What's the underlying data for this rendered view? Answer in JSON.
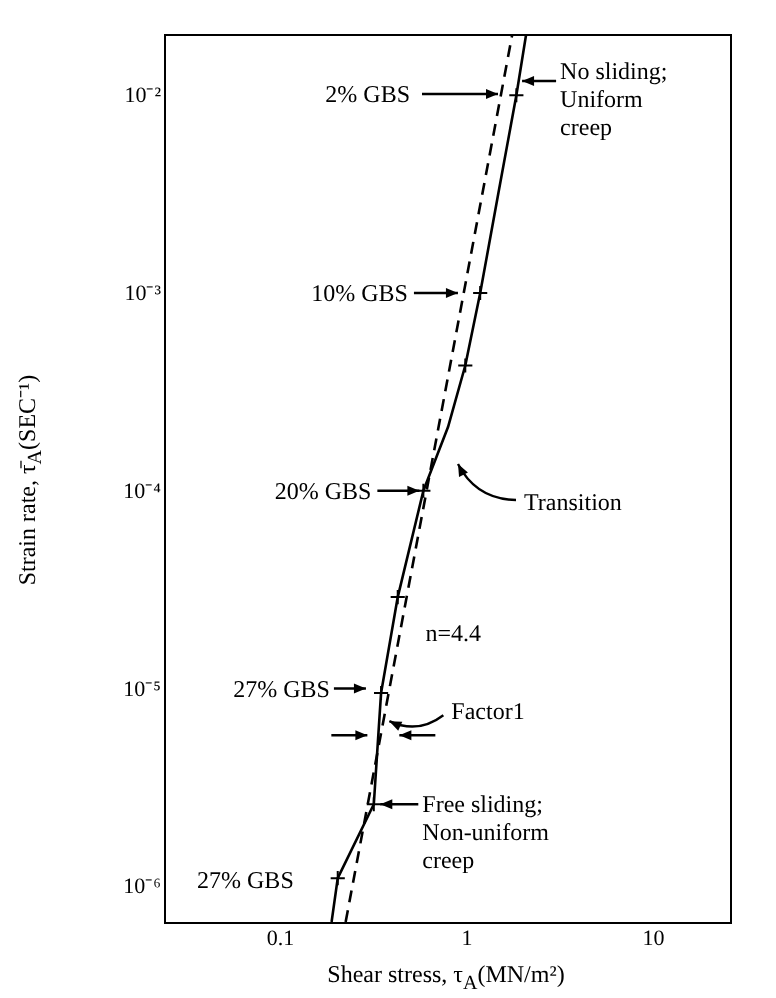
{
  "chart_data": {
    "type": "line",
    "log": "xy",
    "xlabel": "Shear stress, τ$_{A}$(MN/m²)",
    "ylabel": "Strain rate,  τ̄$_{A}$(SEC⁻¹)",
    "xlim": [
      0.024,
      26
    ],
    "ylim": [
      6.6e-07,
      0.0204
    ],
    "xticks": [
      0.1,
      1,
      10
    ],
    "yticks": [
      {
        "value": 1e-06,
        "label": "10⁻⁶"
      },
      {
        "value": 1e-05,
        "label": "10⁻⁵"
      },
      {
        "value": 0.0001,
        "label": "10⁻⁴"
      },
      {
        "value": 0.001,
        "label": "10⁻³"
      },
      {
        "value": 0.01,
        "label": "10⁻²"
      }
    ],
    "series": [
      {
        "color": "#000000",
        "line_style": "solid",
        "x": [
          0.19,
          0.205,
          0.32,
          0.35,
          0.43,
          0.59,
          0.8,
          0.99,
          1.19,
          1.49,
          1.86,
          2.1
        ],
        "values": [
          6.6e-07,
          1.1e-06,
          2.6e-06,
          9.5e-06,
          2.9e-05,
          0.0001,
          0.00021,
          0.00043,
          0.001,
          0.0032,
          0.01,
          0.0204
        ]
      },
      {
        "type": "scatter",
        "color": "#000000",
        "marker": "cross",
        "x": [
          0.205,
          0.32,
          0.35,
          0.43,
          0.59,
          0.99,
          1.19,
          1.86
        ],
        "values": [
          1.1e-06,
          2.6e-06,
          9.5e-06,
          2.9e-05,
          0.0001,
          0.00043,
          0.001,
          0.01
        ]
      },
      {
        "color": "#000000",
        "line_style": "dashed",
        "x": [
          0.226,
          1.77
        ],
        "values": [
          6.6e-07,
          0.0204
        ]
      }
    ],
    "annotations": [
      "2% GBS",
      {
        "text": "No sliding;\nUniform\ncreep",
        "x": 1.9,
        "y": 0.0118
      },
      {
        "text": "10% GBS",
        "x": 0.95,
        "y": 0.001
      },
      {
        "text": "20% GBS",
        "x": 0.59,
        "y": 0.0001
      },
      "Transition",
      {
        "text": "n=4.4",
        "x": 0.45,
        "y": 1.9e-05
      },
      {
        "text": "27% GBS",
        "x": 0.305,
        "y": 1e-05
      },
      {
        "text": "Factor1",
        "x": 0.36,
        "y": 7e-06
      },
      {
        "text": "Free sliding;\nNon-uniform\ncreep",
        "x": 0.33,
        "y": 2.6e-06
      },
      {
        "text": "27% GBS",
        "x": 0.205,
        "y": 1.1e-06
      }
    ]
  }
}
